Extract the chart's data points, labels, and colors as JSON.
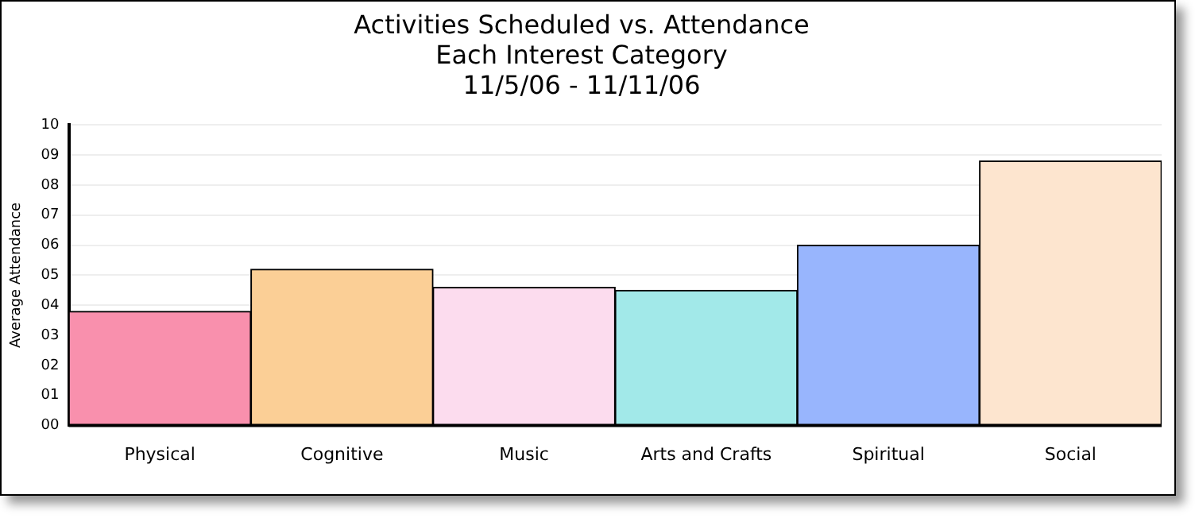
{
  "chart_data": {
    "type": "bar",
    "title": "Activities Scheduled vs. Attendance",
    "subtitle": "Each Interest Category\n11/5/06 - 11/11/06",
    "ylabel": "Average Attendance",
    "categories": [
      "Physical",
      "Cognitive",
      "Music",
      "Arts and Crafts",
      "Spiritual",
      "Social"
    ],
    "values": [
      3.8,
      5.2,
      4.6,
      4.5,
      6.0,
      8.8
    ],
    "colors": [
      "#f990ad",
      "#fbcf96",
      "#fcdcee",
      "#a2e9e9",
      "#98b5fd",
      "#fde5cf"
    ],
    "ylim": [
      0,
      10
    ],
    "yticks": [
      {
        "value": 0,
        "label": "00"
      },
      {
        "value": 1,
        "label": "01"
      },
      {
        "value": 2,
        "label": "02"
      },
      {
        "value": 3,
        "label": "03"
      },
      {
        "value": 4,
        "label": "04"
      },
      {
        "value": 5,
        "label": "05"
      },
      {
        "value": 6,
        "label": "06"
      },
      {
        "value": 7,
        "label": "07"
      },
      {
        "value": 8,
        "label": "08"
      },
      {
        "value": 9,
        "label": "09"
      },
      {
        "value": 10,
        "label": "10"
      }
    ],
    "grid": "y",
    "legend": false
  }
}
